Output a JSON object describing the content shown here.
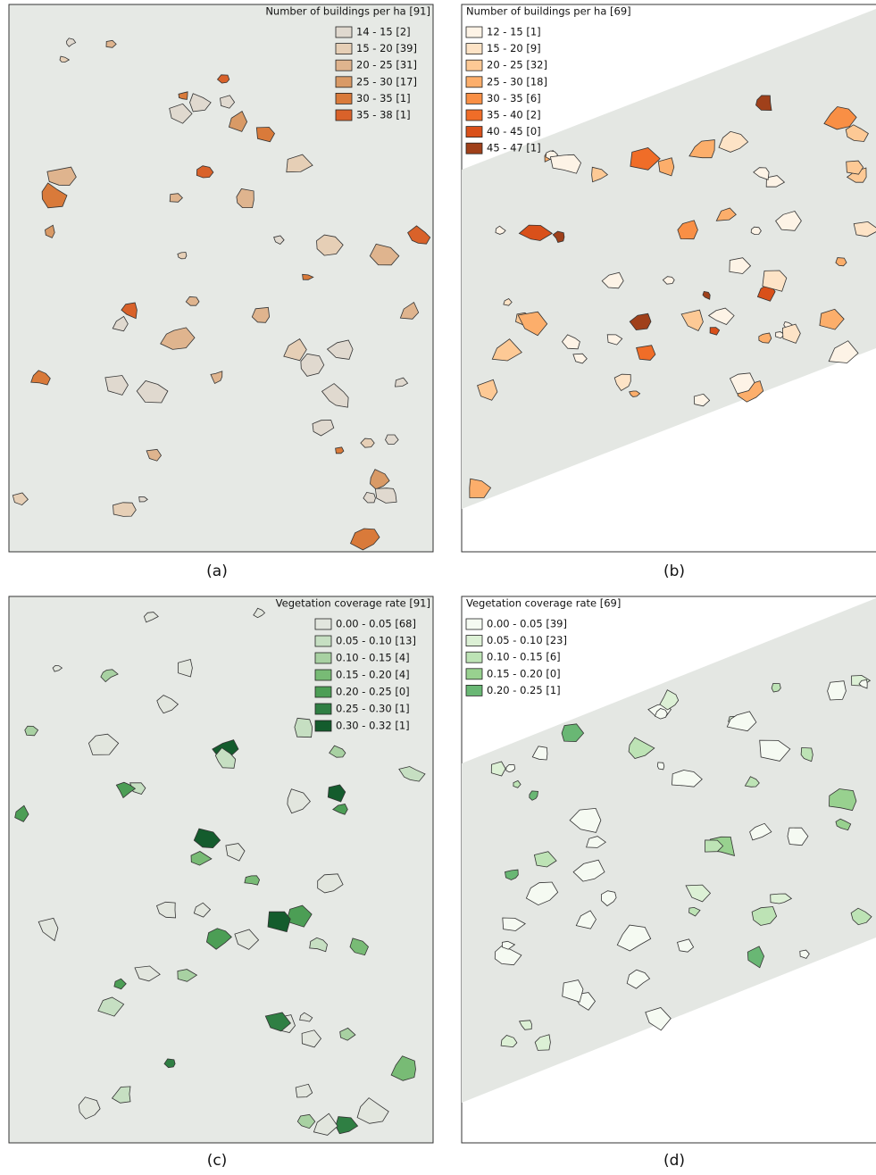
{
  "panels": [
    {
      "title": "Number of buildings per ha [91]",
      "caption": "(a)",
      "legend": [
        {
          "label": "14 - 15 [2]",
          "color": "#e0d9cf"
        },
        {
          "label": "15 - 20 [39]",
          "color": "#e6cfb6"
        },
        {
          "label": "20 - 25 [31]",
          "color": "#dfb48e"
        },
        {
          "label": "25 - 30 [17]",
          "color": "#d99a66"
        },
        {
          "label": "30 - 35 [1]",
          "color": "#d97a3a"
        },
        {
          "label": "35 - 38 [1]",
          "color": "#d9622a"
        }
      ]
    },
    {
      "title": "Number of buildings per ha [69]",
      "caption": "(b)",
      "legend": [
        {
          "label": "12 - 15 [1]",
          "color": "#fdf3e6"
        },
        {
          "label": "15 - 20 [9]",
          "color": "#fde3c6"
        },
        {
          "label": "20 - 25 [32]",
          "color": "#fdc995"
        },
        {
          "label": "25 - 30 [18]",
          "color": "#fcae6b"
        },
        {
          "label": "30 - 35 [6]",
          "color": "#f98f45"
        },
        {
          "label": "35 - 40 [2]",
          "color": "#f06d28"
        },
        {
          "label": "40 - 45 [0]",
          "color": "#d9501a"
        },
        {
          "label": "45 - 47 [1]",
          "color": "#a0401a"
        }
      ]
    },
    {
      "title": "Vegetation coverage rate [91]",
      "caption": "(c)",
      "legend": [
        {
          "label": "0.00 - 0.05 [68]",
          "color": "#e2e6de"
        },
        {
          "label": "0.05 - 0.10 [13]",
          "color": "#c6dfc2"
        },
        {
          "label": "0.10 - 0.15 [4]",
          "color": "#a8d1a2"
        },
        {
          "label": "0.15 - 0.20 [4]",
          "color": "#78bb75"
        },
        {
          "label": "0.20 - 0.25 [0]",
          "color": "#4c9e55"
        },
        {
          "label": "0.25 - 0.30 [1]",
          "color": "#2f7f43"
        },
        {
          "label": "0.30 - 0.32 [1]",
          "color": "#145c2d"
        }
      ]
    },
    {
      "title": "Vegetation coverage rate [69]",
      "caption": "(d)",
      "legend": [
        {
          "label": "0.00 - 0.05 [39]",
          "color": "#f5faf2"
        },
        {
          "label": "0.05 - 0.10 [23]",
          "color": "#dcf0d5"
        },
        {
          "label": "0.10 - 0.15 [6]",
          "color": "#bde3b5"
        },
        {
          "label": "0.15 - 0.20 [0]",
          "color": "#98d18f"
        },
        {
          "label": "0.20 - 0.25 [1]",
          "color": "#69b774"
        }
      ]
    }
  ]
}
